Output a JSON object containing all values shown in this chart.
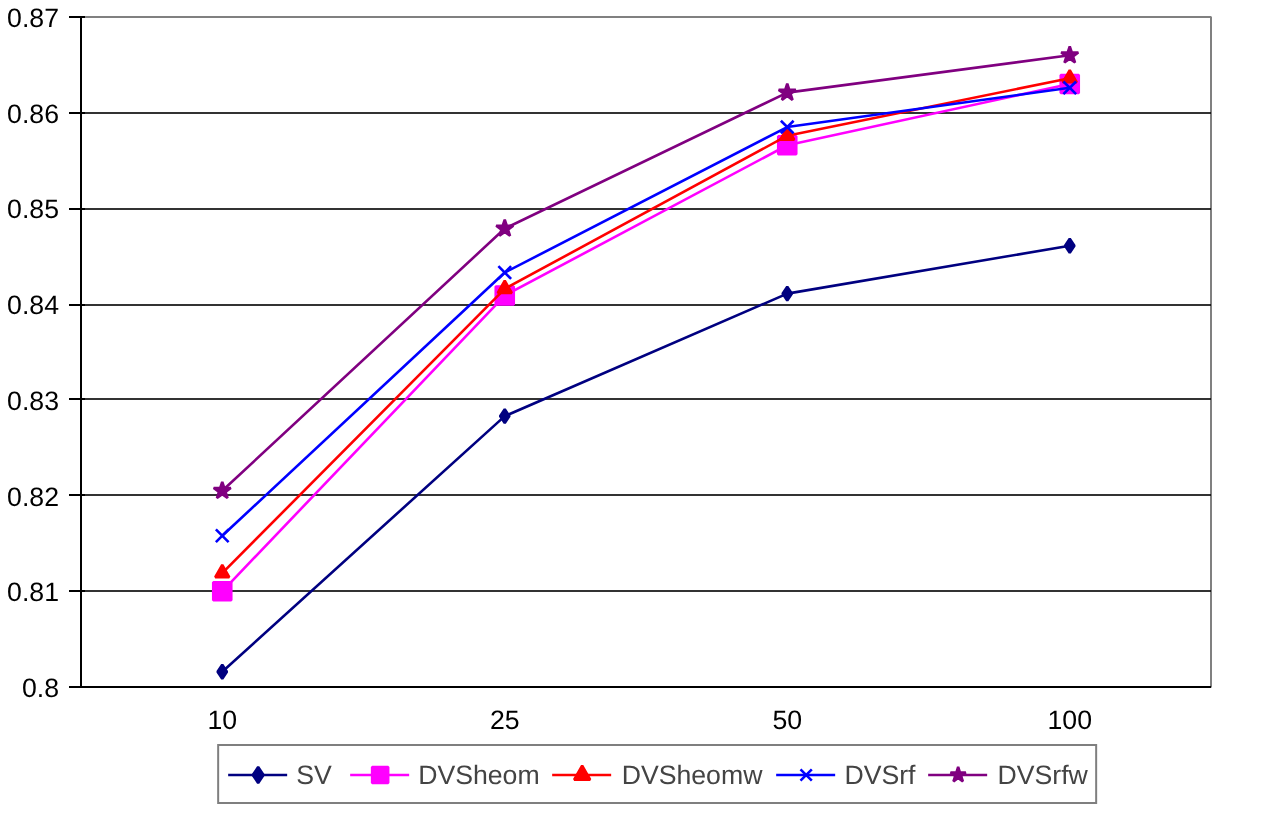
{
  "chart_data": {
    "type": "line",
    "categories": [
      "10",
      "25",
      "50",
      "100"
    ],
    "ylim": [
      0.8,
      0.87
    ],
    "yticks": [
      0.8,
      0.81,
      0.82,
      0.83,
      0.84,
      0.85,
      0.86,
      0.87
    ],
    "grid": "y",
    "legend": "bottom",
    "series": [
      {
        "name": "SV",
        "color": "#000080",
        "marker": "diamond",
        "values": [
          0.8016,
          0.8283,
          0.8411,
          0.8461
        ]
      },
      {
        "name": "DVSheom",
        "color": "#ff00ff",
        "marker": "square",
        "values": [
          0.81,
          0.8409,
          0.8566,
          0.863
        ]
      },
      {
        "name": "DVSheomw",
        "color": "#ff0000",
        "marker": "triangle",
        "values": [
          0.8119,
          0.8416,
          0.8576,
          0.8636
        ]
      },
      {
        "name": "DVSrf",
        "color": "#0000ff",
        "marker": "cross",
        "values": [
          0.8158,
          0.8433,
          0.8585,
          0.8626
        ]
      },
      {
        "name": "DVSrfw",
        "color": "#800080",
        "marker": "star",
        "values": [
          0.8205,
          0.8479,
          0.8621,
          0.866
        ]
      }
    ]
  }
}
